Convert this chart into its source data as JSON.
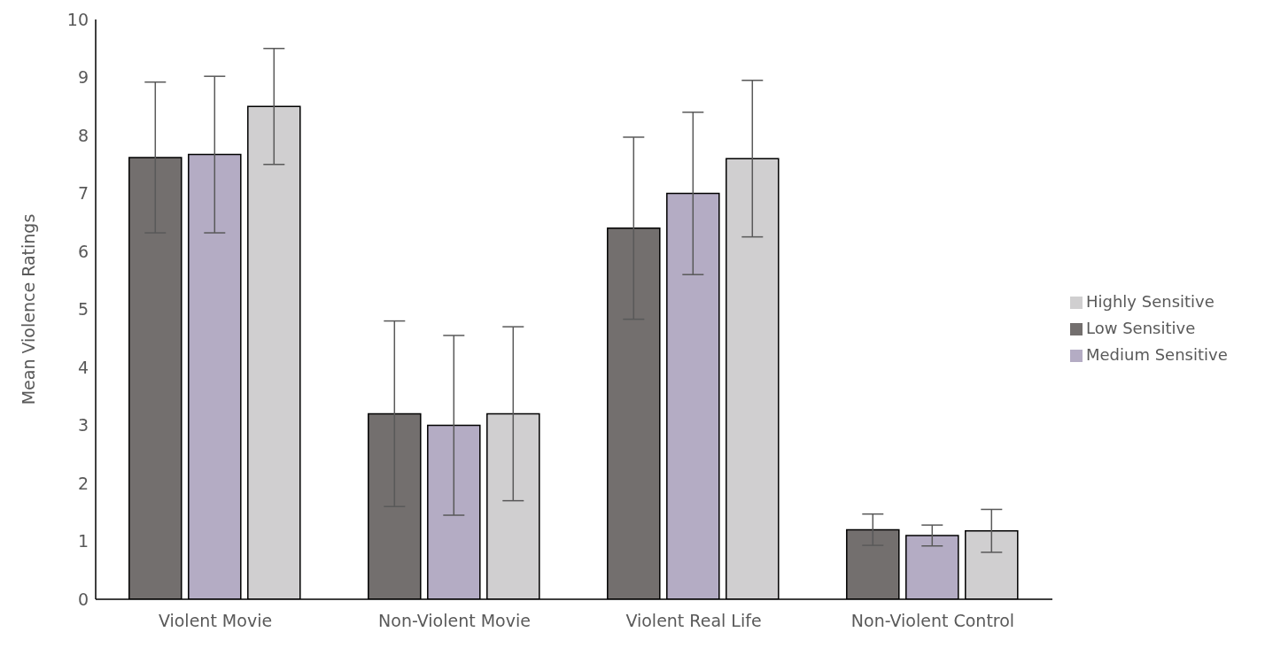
{
  "chart_data": {
    "type": "bar",
    "ylabel": "Mean Violence Ratings",
    "categories": [
      "Violent Movie",
      "Non-Violent Movie",
      "Violent Real Life",
      "Non-Violent Control"
    ],
    "series": [
      {
        "name": "Low Sensitive",
        "color": "#736f6e",
        "values": [
          7.62,
          3.2,
          6.4,
          1.2
        ],
        "errors": [
          1.3,
          1.6,
          1.57,
          0.27
        ]
      },
      {
        "name": "Medium Sensitive",
        "color": "#b4acc4",
        "values": [
          7.67,
          3.0,
          7.0,
          1.1
        ],
        "errors": [
          1.35,
          1.55,
          1.4,
          0.18
        ]
      },
      {
        "name": "Highly Sensitive",
        "color": "#d0cfd0",
        "values": [
          8.5,
          3.2,
          7.6,
          1.18
        ],
        "errors": [
          1.0,
          1.5,
          1.35,
          0.37
        ]
      }
    ],
    "ylim": [
      0,
      10
    ],
    "yticks": [
      0,
      1,
      2,
      3,
      4,
      5,
      6,
      7,
      8,
      9,
      10
    ],
    "grid": false,
    "legend": "right"
  }
}
